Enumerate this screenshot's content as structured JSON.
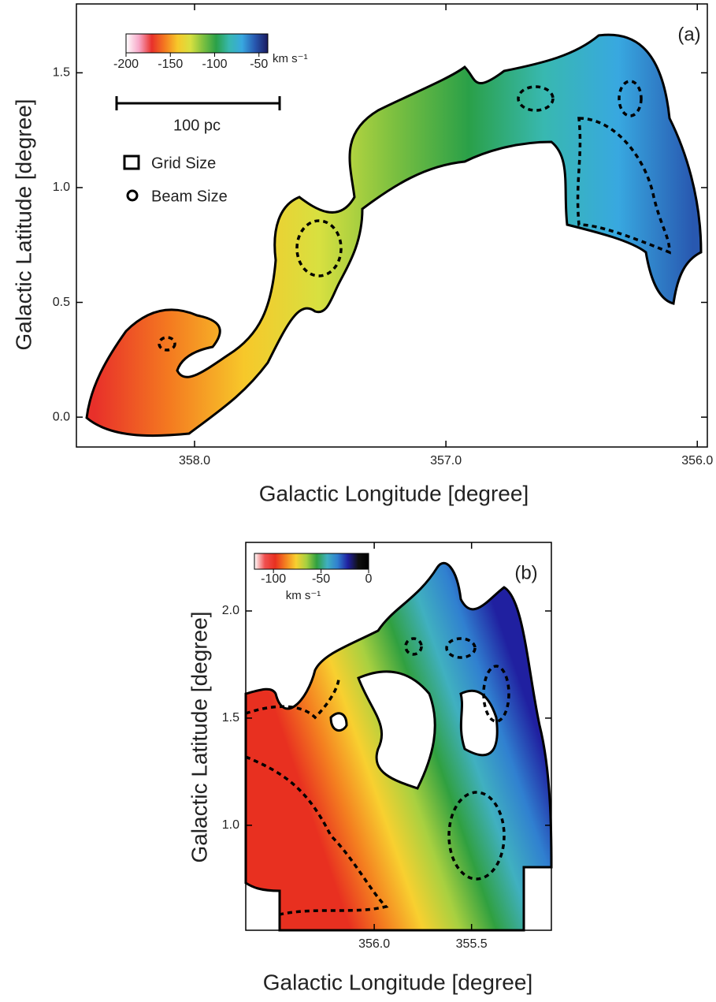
{
  "chart_data": [
    {
      "type": "map",
      "title": "(a)",
      "xlabel": "Galactic Longitude [degree]",
      "ylabel": "Galactic Latitude [degree]",
      "xlim": [
        358.47,
        355.96
      ],
      "xticks": [
        {
          "value": 358,
          "label": "358.0"
        },
        {
          "value": 357,
          "label": "357.0"
        },
        {
          "value": 356,
          "label": "356.0"
        }
      ],
      "ylim": [
        -0.13,
        1.8
      ],
      "yticks": [
        {
          "value": 0,
          "label": "0.0"
        },
        {
          "value": 0.5,
          "label": "0.5"
        },
        {
          "value": 1,
          "label": "1.0"
        },
        {
          "value": 1.5,
          "label": "1.5"
        }
      ],
      "colorbar": {
        "lim": [
          -200,
          -40
        ],
        "ticks": [
          -200,
          -150,
          -100,
          -50
        ],
        "label": "km s⁻¹",
        "colors": [
          "#ffffff",
          "#f7a8c8",
          "#e8302a",
          "#f47a20",
          "#f7c82a",
          "#d8e040",
          "#7cc040",
          "#2aa048",
          "#38b8b0",
          "#38a8e0",
          "#2858b0",
          "#1a1a60"
        ]
      },
      "annotations": [
        "100 pc",
        "Grid Size",
        "Beam Size"
      ]
    },
    {
      "type": "map",
      "title": "(b)",
      "xlabel": "Galactic Longitude [degree]",
      "ylabel": "Galactic Latitude [degree]",
      "xlim": [
        356.66,
        355.09
      ],
      "xticks": [
        {
          "value": 356,
          "label": "356.0"
        },
        {
          "value": 355.5,
          "label": "355.5"
        }
      ],
      "ylim": [
        0.51,
        2.32
      ],
      "yticks": [
        {
          "value": 1,
          "label": "1.0"
        },
        {
          "value": 1.5,
          "label": "1.5"
        },
        {
          "value": 2,
          "label": "2.0"
        }
      ],
      "colorbar": {
        "lim": [
          -120,
          0
        ],
        "ticks": [
          -100,
          -50,
          0
        ],
        "label": "km s⁻¹",
        "colors": [
          "#ffffff",
          "#f05050",
          "#e83020",
          "#f48020",
          "#f8d030",
          "#a8d040",
          "#30a040",
          "#40b0c0",
          "#3080d0",
          "#2020a0",
          "#101010",
          "#000000"
        ]
      }
    }
  ]
}
